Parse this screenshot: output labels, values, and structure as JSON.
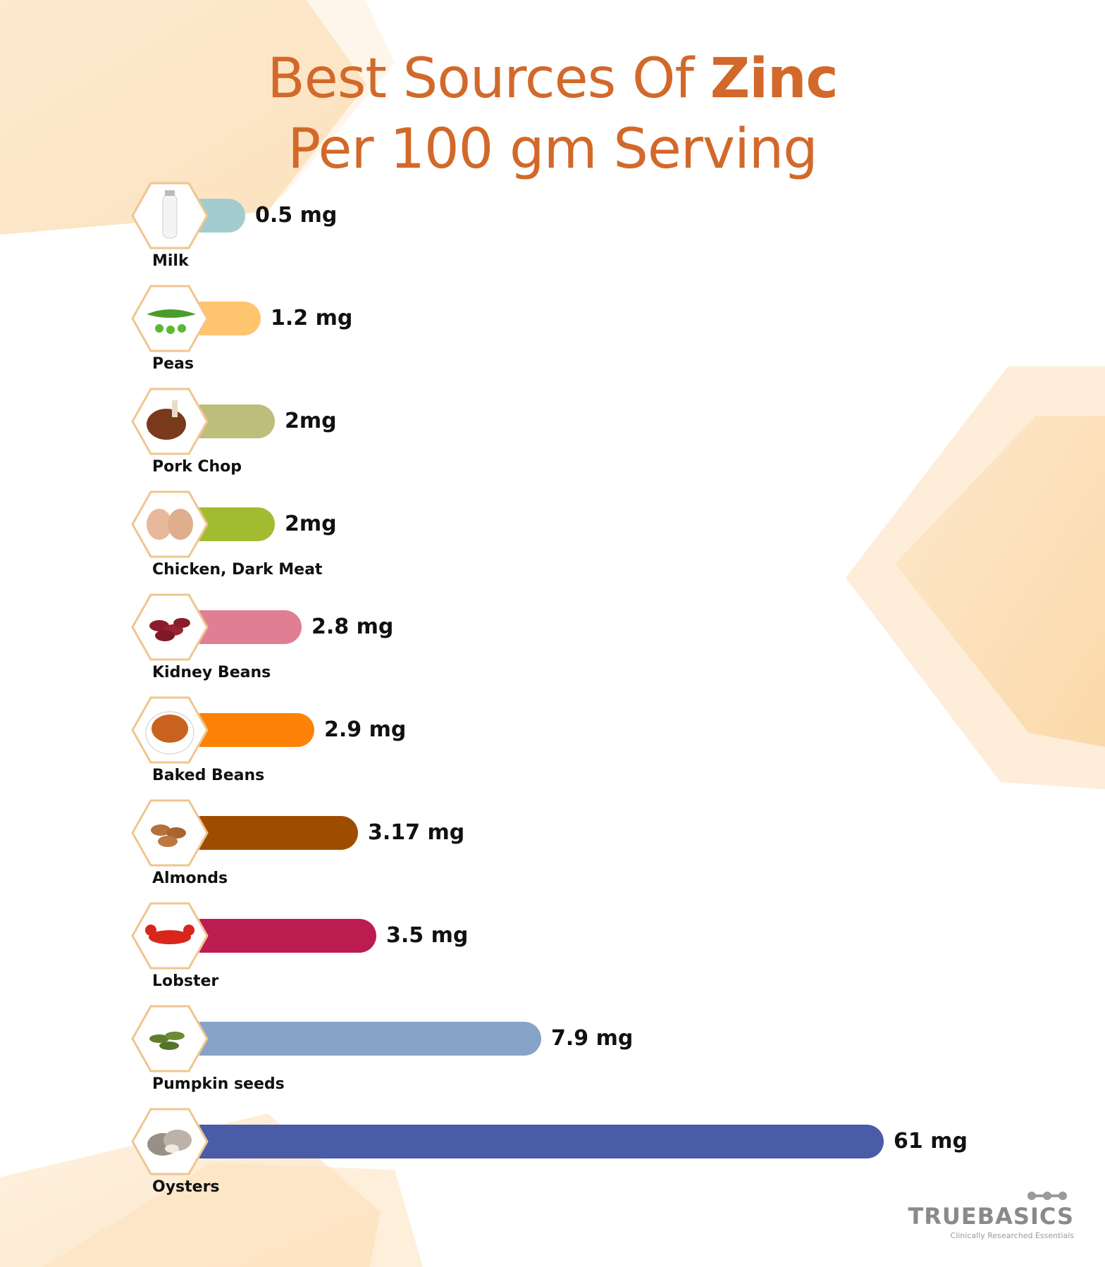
{
  "title": {
    "line1_prefix": "Best Sources Of ",
    "line1_accent": "Zinc",
    "line2": "Per 100 gm Serving"
  },
  "colors": {
    "title": "#d2692a",
    "hex_border": "#f0c58f",
    "background_shape": "#fce3bf"
  },
  "chart_data": {
    "type": "bar",
    "orientation": "horizontal",
    "unit": "mg",
    "categories": [
      "Milk",
      "Peas",
      "Pork Chop",
      "Chicken, Dark Meat",
      "Kidney Beans",
      "Baked Beans",
      "Almonds",
      "Lobster",
      "Pumpkin seeds",
      "Oysters"
    ],
    "values": [
      0.5,
      1.2,
      2,
      2,
      2.8,
      2.9,
      3.17,
      3.5,
      7.9,
      61
    ],
    "value_labels": [
      "0.5 mg",
      "1.2 mg",
      "2mg",
      "2mg",
      "2.8 mg",
      "2.9 mg",
      "3.17 mg",
      "3.5 mg",
      "7.9 mg",
      "61 mg"
    ],
    "bar_colors": [
      "#a3cccf",
      "#fec46e",
      "#bfbd7b",
      "#a3bb31",
      "#e07f93",
      "#fd8205",
      "#9e4d00",
      "#bc1c4f",
      "#86a3c8",
      "#4a5ba8"
    ],
    "icons": [
      "milk-bottle-icon",
      "pea-pod-icon",
      "pork-chop-icon",
      "chicken-thigh-icon",
      "kidney-beans-icon",
      "baked-beans-bowl-icon",
      "almonds-icon",
      "lobster-icon",
      "pumpkin-seeds-icon",
      "oysters-icon"
    ]
  },
  "brand": {
    "name": "TRUEBASICS",
    "tagline": "Clinically Researched Essentials"
  }
}
